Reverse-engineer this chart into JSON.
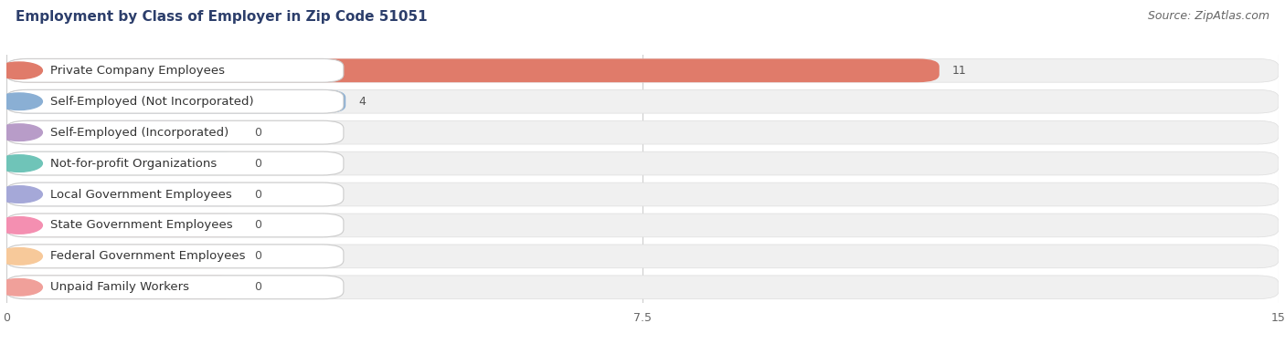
{
  "title": "Employment by Class of Employer in Zip Code 51051",
  "source": "Source: ZipAtlas.com",
  "categories": [
    "Private Company Employees",
    "Self-Employed (Not Incorporated)",
    "Self-Employed (Incorporated)",
    "Not-for-profit Organizations",
    "Local Government Employees",
    "State Government Employees",
    "Federal Government Employees",
    "Unpaid Family Workers"
  ],
  "values": [
    11,
    4,
    0,
    0,
    0,
    0,
    0,
    0
  ],
  "bar_colors": [
    "#e07b6a",
    "#8aafd4",
    "#b89cc8",
    "#6fc4b8",
    "#a5a8d8",
    "#f48fb1",
    "#f7c99a",
    "#f0a09a"
  ],
  "label_bg_colors": [
    "#fce8e6",
    "#e8f0f8",
    "#f0eaf5",
    "#e6f5f3",
    "#eeeef8",
    "#fde8ef",
    "#fdf3e6",
    "#fde8e6"
  ],
  "xlim": [
    0,
    15
  ],
  "xticks": [
    0,
    7.5,
    15
  ],
  "background_color": "#ffffff",
  "row_bg_color": "#f0f0f0",
  "title_fontsize": 11,
  "source_fontsize": 9,
  "label_fontsize": 9.5,
  "value_fontsize": 9
}
